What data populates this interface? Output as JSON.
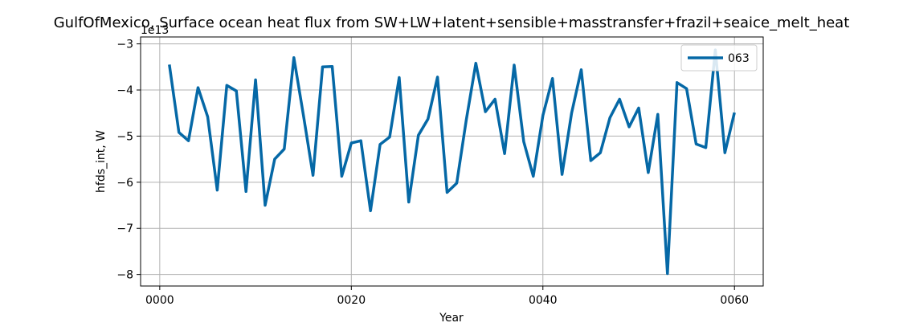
{
  "chart_data": {
    "type": "line",
    "title": "GulfOfMexico, Surface ocean heat flux from SW+LW+latent+sensible+masstransfer+frazil+seaice_melt_heat",
    "xlabel": "Year",
    "ylabel": "hfds_int, W",
    "y_offset_label": "1e13",
    "xlim": [
      -2,
      63
    ],
    "ylim": [
      -8.25,
      -2.85
    ],
    "x_ticks": [
      0,
      20,
      40,
      60
    ],
    "x_tick_labels": [
      "0000",
      "0020",
      "0040",
      "0060"
    ],
    "y_ticks": [
      -8,
      -7,
      -6,
      -5,
      -4,
      -3
    ],
    "y_tick_labels": [
      "−8",
      "−7",
      "−6",
      "−5",
      "−4",
      "−3"
    ],
    "grid": true,
    "legend_position": "top-right",
    "colors": {
      "line": "#0568a6",
      "grid": "#b0b0b0",
      "axes": "#000000"
    },
    "series": [
      {
        "name": "063",
        "x": [
          1,
          2,
          3,
          4,
          5,
          6,
          7,
          8,
          9,
          10,
          11,
          12,
          13,
          14,
          15,
          16,
          17,
          18,
          19,
          20,
          21,
          22,
          23,
          24,
          25,
          26,
          27,
          28,
          29,
          30,
          31,
          32,
          33,
          34,
          35,
          36,
          37,
          38,
          39,
          40,
          41,
          42,
          43,
          44,
          45,
          46,
          47,
          48,
          49,
          50,
          51,
          52,
          53,
          54,
          55,
          56,
          57,
          58,
          59,
          60
        ],
        "values": [
          -3.45,
          -4.92,
          -5.1,
          -3.95,
          -4.58,
          -6.17,
          -3.9,
          -4.02,
          -6.2,
          -3.78,
          -6.5,
          -5.5,
          -5.28,
          -3.3,
          -4.55,
          -5.85,
          -3.5,
          -3.49,
          -5.87,
          -5.15,
          -5.1,
          -6.62,
          -5.18,
          -5.02,
          -3.73,
          -6.43,
          -4.98,
          -4.63,
          -3.72,
          -6.22,
          -6.02,
          -4.65,
          -3.42,
          -4.47,
          -4.2,
          -5.38,
          -3.46,
          -5.12,
          -5.87,
          -4.55,
          -3.75,
          -5.83,
          -4.5,
          -3.56,
          -5.53,
          -5.36,
          -4.6,
          -4.2,
          -4.8,
          -4.39,
          -5.79,
          -4.53,
          -7.98,
          -3.84,
          -3.97,
          -5.17,
          -5.25,
          -3.13,
          -5.36,
          -4.49
        ]
      }
    ]
  }
}
